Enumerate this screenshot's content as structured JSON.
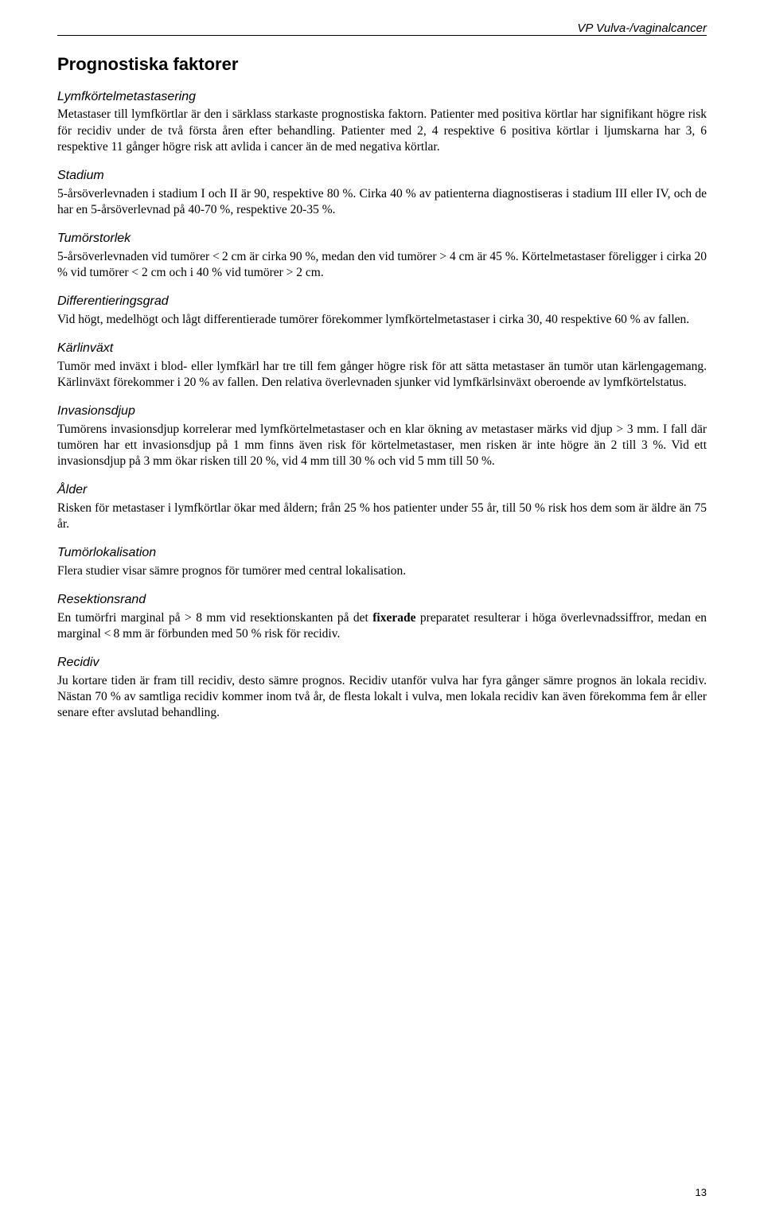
{
  "document": {
    "header": "VP Vulva-/vaginalcancer",
    "title": "Prognostiska faktorer",
    "page_number": "13",
    "sections": [
      {
        "heading": "Lymfkörtelmetastasering",
        "text": "Metastaser till lymfkörtlar är den i särklass starkaste prognostiska faktorn. Patienter med positiva körtlar har signifikant högre risk för recidiv under de två första åren efter behandling. Patienter med 2, 4 respektive 6 positiva körtlar i ljumskarna har 3, 6 respektive 11 gånger högre risk att avlida i cancer än de med negativa körtlar."
      },
      {
        "heading": "Stadium",
        "text": "5-årsöverlevnaden i stadium I och II är 90, respektive 80 %. Cirka 40 % av patienterna diagnostiseras i stadium III eller IV, och de har en 5-årsöverlevnad på 40-70 %, respektive 20-35 %."
      },
      {
        "heading": "Tumörstorlek",
        "text": "5-årsöverlevnaden vid tumörer < 2 cm är cirka 90 %, medan den vid tumörer > 4 cm är 45 %. Körtelmetastaser föreligger i cirka 20 % vid tumörer < 2 cm och i 40 % vid tumörer > 2 cm."
      },
      {
        "heading": "Differentieringsgrad",
        "text": "Vid högt, medelhögt och lågt differentierade tumörer förekommer lymfkörtelmetastaser i cirka 30, 40 respektive 60 % av fallen."
      },
      {
        "heading": "Kärlinväxt",
        "text": "Tumör med inväxt i blod- eller lymfkärl har tre till fem gånger högre risk för att sätta metastaser än tumör utan kärlengagemang. Kärlinväxt förekommer i 20 % av fallen. Den relativa överlevnaden sjunker vid lymfkärlsinväxt oberoende av lymfkörtelstatus."
      },
      {
        "heading": "Invasionsdjup",
        "text": "Tumörens invasionsdjup korrelerar med lymfkörtelmetastaser och en klar ökning av metastaser märks vid djup > 3 mm. I fall där tumören har ett invasionsdjup på 1 mm finns även risk för körtelmetastaser, men risken är inte högre än 2 till 3 %. Vid ett invasionsdjup på 3 mm ökar risken till 20 %, vid 4 mm till 30 % och vid 5 mm till 50 %."
      },
      {
        "heading": "Ålder",
        "text": "Risken för metastaser i lymfkörtlar ökar med åldern; från 25 % hos patienter under 55 år, till 50 % risk hos dem som är äldre än 75 år."
      },
      {
        "heading": "Tumörlokalisation",
        "text": "Flera studier visar sämre prognos för tumörer med central lokalisation."
      },
      {
        "heading": "Resektionsrand",
        "text_html": "En tumörfri marginal på > 8 mm vid resektionskanten på det <b>fixerade</b> preparatet resulterar i höga överlevnadssiffror, medan en marginal < 8 mm är förbunden med 50 % risk för recidiv."
      },
      {
        "heading": "Recidiv",
        "text": "Ju kortare tiden är fram till recidiv, desto sämre prognos. Recidiv utanför vulva har fyra gånger sämre prognos än lokala recidiv. Nästan 70 % av samtliga recidiv kommer inom två år, de flesta lokalt i vulva, men lokala recidiv kan även förekomma fem år eller senare efter avslutad behandling."
      }
    ]
  }
}
